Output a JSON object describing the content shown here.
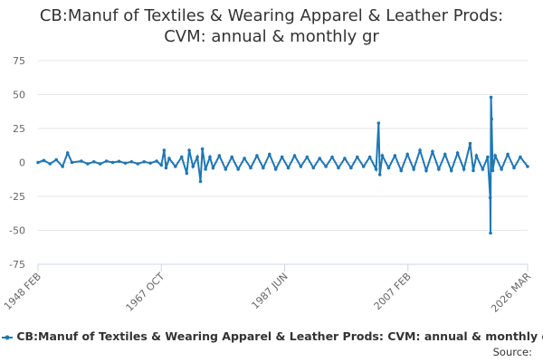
{
  "chart_data": {
    "type": "line",
    "title": "CB:Manuf of Textiles & Wearing Apparel & Leather Prods: CVM: annual & monthly gr",
    "source": "Source:",
    "grid": true,
    "ylim": [
      -75,
      75
    ],
    "yticks": [
      75,
      50,
      25,
      0,
      -25,
      -50,
      -75
    ],
    "xlim": [
      1948.083,
      2026.167
    ],
    "xticks": [
      {
        "value": 1948.083,
        "label": "1948 FEB"
      },
      {
        "value": 1967.75,
        "label": "1967 OCT"
      },
      {
        "value": 1987.417,
        "label": "1987 JUN"
      },
      {
        "value": 2007.083,
        "label": "2007 FEB"
      },
      {
        "value": 2026.167,
        "label": "2026 MAR"
      }
    ],
    "x": [
      1948.083,
      1949,
      1950,
      1951,
      1952,
      1952.8,
      1953.5,
      1955,
      1956,
      1957,
      1958,
      1959,
      1960,
      1961,
      1962,
      1963,
      1964,
      1965,
      1966,
      1967,
      1967.75,
      1968.2,
      1968.5,
      1969,
      1970,
      1971,
      1971.8,
      1972.2,
      1972.8,
      1973.5,
      1974,
      1974.3,
      1974.8,
      1975.5,
      1976,
      1977,
      1978,
      1979,
      1980,
      1981,
      1982,
      1983,
      1984,
      1985,
      1986,
      1987,
      1988,
      1989,
      1990,
      1991,
      1992,
      1993,
      1994,
      1995,
      1996,
      1997,
      1998,
      1999,
      2000,
      2001,
      2002,
      2002.4,
      2002.6,
      2003,
      2004,
      2005,
      2006,
      2007,
      2008,
      2009,
      2010,
      2011,
      2012,
      2013,
      2014,
      2015,
      2016,
      2017,
      2017.5,
      2018,
      2019,
      2019.8,
      2020.2,
      2020.25,
      2020.33,
      2020.42,
      2020.6,
      2021,
      2022,
      2023,
      2024,
      2025,
      2026.167
    ],
    "series": [
      {
        "name": "CB:Manuf of Textiles & Wearing Apparel & Leather Prods: CVM: annual & monthly gr",
        "color": "#1f77b4",
        "values": [
          0,
          1.5,
          -1,
          2,
          -3,
          7,
          0,
          1,
          -1,
          0.5,
          -1,
          1,
          0,
          0.8,
          -0.5,
          0.5,
          -1,
          0.5,
          -0.5,
          1,
          -2,
          9,
          -4,
          3,
          -3,
          4,
          -8,
          9,
          -3,
          4,
          -14,
          10,
          -5,
          4,
          -4,
          5,
          -5,
          4,
          -5,
          3,
          -4,
          5,
          -4,
          6,
          -5,
          4,
          -4,
          5,
          -3,
          4,
          -4,
          3,
          -3,
          4,
          -4,
          3,
          -4,
          4,
          -3,
          4,
          -5,
          29,
          -9,
          5,
          -4,
          5,
          -6,
          6,
          -5,
          9,
          -6,
          8,
          -5,
          6,
          -6,
          7,
          -5,
          14,
          -6,
          5,
          -5,
          4,
          -26,
          -52,
          48,
          32,
          -6,
          5,
          -5,
          6,
          -4,
          4,
          -3
        ]
      }
    ]
  }
}
